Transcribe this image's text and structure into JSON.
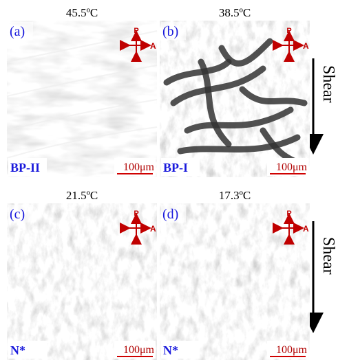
{
  "panels": [
    {
      "temperature": "45.5ºC",
      "label": "(a)",
      "phase": "BP-II",
      "scale_bar": "100μm",
      "polarizer": "P",
      "analyzer": "A"
    },
    {
      "temperature": "38.5ºC",
      "label": "(b)",
      "phase": "BP-I",
      "scale_bar": "100μm",
      "polarizer": "P",
      "analyzer": "A"
    },
    {
      "temperature": "21.5ºC",
      "label": "(c)",
      "phase": "N*",
      "scale_bar": "100μm",
      "polarizer": "P",
      "analyzer": "A"
    },
    {
      "temperature": "17.3ºC",
      "label": "(d)",
      "phase": "N*",
      "scale_bar": "100μm",
      "polarizer": "P",
      "analyzer": "A"
    }
  ],
  "shear_labels": [
    "Shear",
    "Shear"
  ]
}
